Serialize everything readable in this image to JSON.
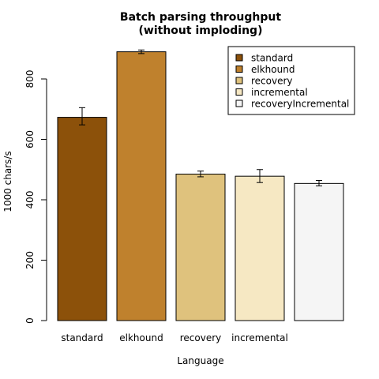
{
  "chart_data": {
    "type": "bar",
    "title_lines": [
      "Batch parsing throughput",
      "(without imploding)"
    ],
    "xlabel": "Language",
    "ylabel": "1000 chars/s",
    "ylim": [
      0,
      900
    ],
    "yticks": [
      0,
      200,
      400,
      600,
      800
    ],
    "ytick_labels": [
      "0",
      "200",
      "400",
      "600",
      "800"
    ],
    "categories": [
      "standard",
      "elkhound",
      "recovery",
      "incremental",
      ""
    ],
    "values": [
      673,
      890,
      485,
      478,
      454
    ],
    "error_low": [
      648,
      884,
      476,
      457,
      446
    ],
    "error_high": [
      705,
      896,
      495,
      500,
      464
    ],
    "colors": [
      "#8C510A",
      "#BF812D",
      "#DFC27D",
      "#F6E8C3",
      "#F5F5F5"
    ],
    "grid": false,
    "legend": {
      "position": "top-right",
      "entries": [
        "standard",
        "elkhound",
        "recovery",
        "incremental",
        "recoveryIncremental"
      ]
    }
  }
}
